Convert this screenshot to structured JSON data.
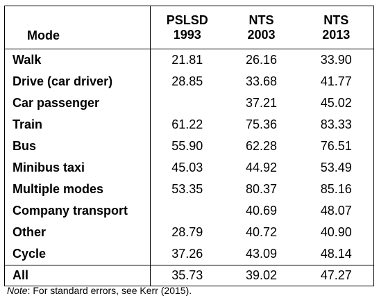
{
  "table": {
    "header": {
      "mode": "Mode",
      "columns": [
        {
          "line1": "PSLSD",
          "line2": "1993"
        },
        {
          "line1": "NTS",
          "line2": "2003"
        },
        {
          "line1": "NTS",
          "line2": "2013"
        }
      ]
    },
    "rows": [
      {
        "mode": "Walk",
        "values": [
          "21.81",
          "26.16",
          "33.90"
        ]
      },
      {
        "mode": "Drive (car driver)",
        "values": [
          "28.85",
          "33.68",
          "41.77"
        ]
      },
      {
        "mode": "Car passenger",
        "values": [
          "",
          "37.21",
          "45.02"
        ]
      },
      {
        "mode": "Train",
        "values": [
          "61.22",
          "75.36",
          "83.33"
        ]
      },
      {
        "mode": "Bus",
        "values": [
          "55.90",
          "62.28",
          "76.51"
        ]
      },
      {
        "mode": "Minibus taxi",
        "values": [
          "45.03",
          "44.92",
          "53.49"
        ]
      },
      {
        "mode": "Multiple modes",
        "values": [
          "53.35",
          "80.37",
          "85.16"
        ]
      },
      {
        "mode": "Company transport",
        "values": [
          "",
          "40.69",
          "48.07"
        ]
      },
      {
        "mode": "Other",
        "values": [
          "28.79",
          "40.72",
          "40.90"
        ]
      },
      {
        "mode": "Cycle",
        "values": [
          "37.26",
          "43.09",
          "48.14"
        ]
      }
    ],
    "total": {
      "mode": "All",
      "values": [
        "35.73",
        "39.02",
        "47.27"
      ]
    }
  },
  "note": {
    "label": "Note",
    "text": ": For standard errors, see Kerr (2015)."
  }
}
